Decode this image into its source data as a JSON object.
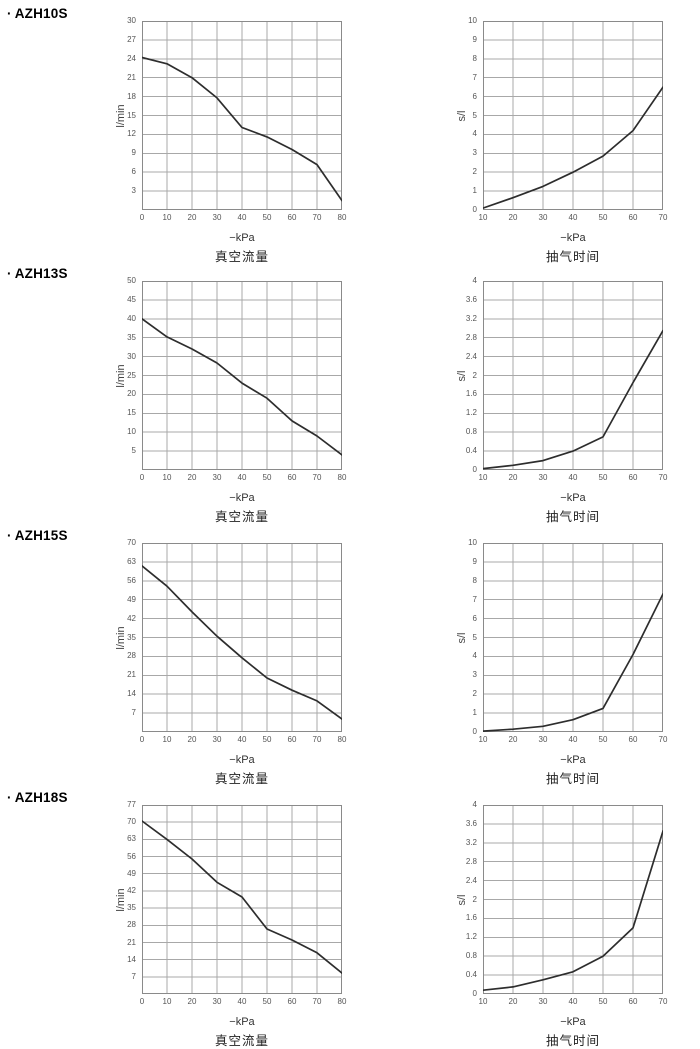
{
  "bullet": "·",
  "chart_data": [
    {
      "model": "AZH10S",
      "kind": "vacuum-flow",
      "type": "line",
      "title": "真空流量",
      "xlabel": "−kPa",
      "ylabel": "l/min",
      "xlim": [
        0,
        80
      ],
      "ylim": [
        0,
        30
      ],
      "xticks": [
        0,
        10,
        20,
        30,
        40,
        50,
        60,
        70,
        80
      ],
      "yticks": [
        3,
        6,
        9,
        12,
        15,
        18,
        21,
        24,
        27,
        30
      ],
      "grid": true,
      "x": [
        0,
        10,
        20,
        30,
        40,
        50,
        60,
        70,
        80
      ],
      "y": [
        24.2,
        23.2,
        21.0,
        17.8,
        13.1,
        11.6,
        9.6,
        7.2,
        1.5
      ]
    },
    {
      "model": "AZH10S",
      "kind": "evacuation-time",
      "type": "line",
      "title": "抽气时间",
      "xlabel": "−kPa",
      "ylabel": "s/l",
      "xlim": [
        10,
        70
      ],
      "ylim": [
        0,
        10
      ],
      "xticks": [
        10,
        20,
        30,
        40,
        50,
        60,
        70
      ],
      "yticks": [
        0,
        1,
        2,
        3,
        4,
        5,
        6,
        7,
        8,
        9,
        10
      ],
      "grid": true,
      "x": [
        10,
        20,
        30,
        40,
        50,
        60,
        70
      ],
      "y": [
        0.1,
        0.65,
        1.25,
        2.0,
        2.85,
        4.2,
        6.5
      ]
    },
    {
      "model": "AZH13S",
      "kind": "vacuum-flow",
      "type": "line",
      "title": "真空流量",
      "xlabel": "−kPa",
      "ylabel": "l/min",
      "xlim": [
        0,
        80
      ],
      "ylim": [
        0,
        50
      ],
      "xticks": [
        0,
        10,
        20,
        30,
        40,
        50,
        60,
        70,
        80
      ],
      "yticks": [
        5,
        10,
        15,
        20,
        25,
        30,
        35,
        40,
        45,
        50
      ],
      "grid": true,
      "x": [
        0,
        10,
        20,
        30,
        40,
        50,
        60,
        70,
        80
      ],
      "y": [
        40.0,
        35.2,
        32.0,
        28.3,
        23.0,
        19.0,
        13.0,
        9.0,
        4.0
      ]
    },
    {
      "model": "AZH13S",
      "kind": "evacuation-time",
      "type": "line",
      "title": "抽气时间",
      "xlabel": "−kPa",
      "ylabel": "s/l",
      "xlim": [
        10,
        70
      ],
      "ylim": [
        0,
        4
      ],
      "xticks": [
        10,
        20,
        30,
        40,
        50,
        60,
        70
      ],
      "yticks": [
        0,
        0.4,
        0.8,
        1.2,
        1.6,
        2,
        2.4,
        2.8,
        3.2,
        3.6,
        4
      ],
      "grid": true,
      "x": [
        10,
        20,
        30,
        40,
        50,
        60,
        70
      ],
      "y": [
        0.03,
        0.1,
        0.2,
        0.4,
        0.7,
        1.85,
        2.95
      ]
    },
    {
      "model": "AZH15S",
      "kind": "vacuum-flow",
      "type": "line",
      "title": "真空流量",
      "xlabel": "−kPa",
      "ylabel": "l/min",
      "xlim": [
        0,
        80
      ],
      "ylim": [
        0,
        70
      ],
      "xticks": [
        0,
        10,
        20,
        30,
        40,
        50,
        60,
        70,
        80
      ],
      "yticks": [
        7,
        14,
        21,
        28,
        35,
        42,
        49,
        56,
        63,
        70
      ],
      "grid": true,
      "x": [
        0,
        10,
        20,
        30,
        40,
        50,
        60,
        70,
        80
      ],
      "y": [
        61.5,
        54.0,
        44.5,
        35.5,
        27.5,
        20.0,
        15.5,
        11.5,
        4.8
      ]
    },
    {
      "model": "AZH15S",
      "kind": "evacuation-time",
      "type": "line",
      "title": "抽气时间",
      "xlabel": "−kPa",
      "ylabel": "s/l",
      "xlim": [
        10,
        70
      ],
      "ylim": [
        0,
        10
      ],
      "xticks": [
        10,
        20,
        30,
        40,
        50,
        60,
        70
      ],
      "yticks": [
        0,
        1,
        2,
        3,
        4,
        5,
        6,
        7,
        8,
        9,
        10
      ],
      "grid": true,
      "x": [
        10,
        20,
        30,
        40,
        50,
        60,
        70
      ],
      "y": [
        0.05,
        0.15,
        0.3,
        0.65,
        1.25,
        4.1,
        7.3
      ]
    },
    {
      "model": "AZH18S",
      "kind": "vacuum-flow",
      "type": "line",
      "title": "真空流量",
      "xlabel": "−kPa",
      "ylabel": "l/min",
      "xlim": [
        0,
        80
      ],
      "ylim": [
        0,
        77
      ],
      "xticks": [
        0,
        10,
        20,
        30,
        40,
        50,
        60,
        70,
        80
      ],
      "yticks": [
        7,
        14,
        21,
        28,
        35,
        42,
        49,
        56,
        63,
        70,
        77
      ],
      "grid": true,
      "x": [
        0,
        10,
        20,
        30,
        40,
        50,
        60,
        70,
        80
      ],
      "y": [
        70.5,
        63.0,
        55.0,
        45.5,
        39.5,
        26.5,
        22.0,
        16.8,
        8.5
      ]
    },
    {
      "model": "AZH18S",
      "kind": "evacuation-time",
      "type": "line",
      "title": "抽气时间",
      "xlabel": "−kPa",
      "ylabel": "s/l",
      "xlim": [
        10,
        70
      ],
      "ylim": [
        0,
        4
      ],
      "xticks": [
        10,
        20,
        30,
        40,
        50,
        60,
        70
      ],
      "yticks": [
        0,
        0.4,
        0.8,
        1.2,
        1.6,
        2,
        2.4,
        2.8,
        3.2,
        3.6,
        4
      ],
      "grid": true,
      "x": [
        10,
        20,
        30,
        40,
        50,
        60,
        70
      ],
      "y": [
        0.08,
        0.15,
        0.3,
        0.47,
        0.8,
        1.4,
        3.45
      ]
    }
  ]
}
